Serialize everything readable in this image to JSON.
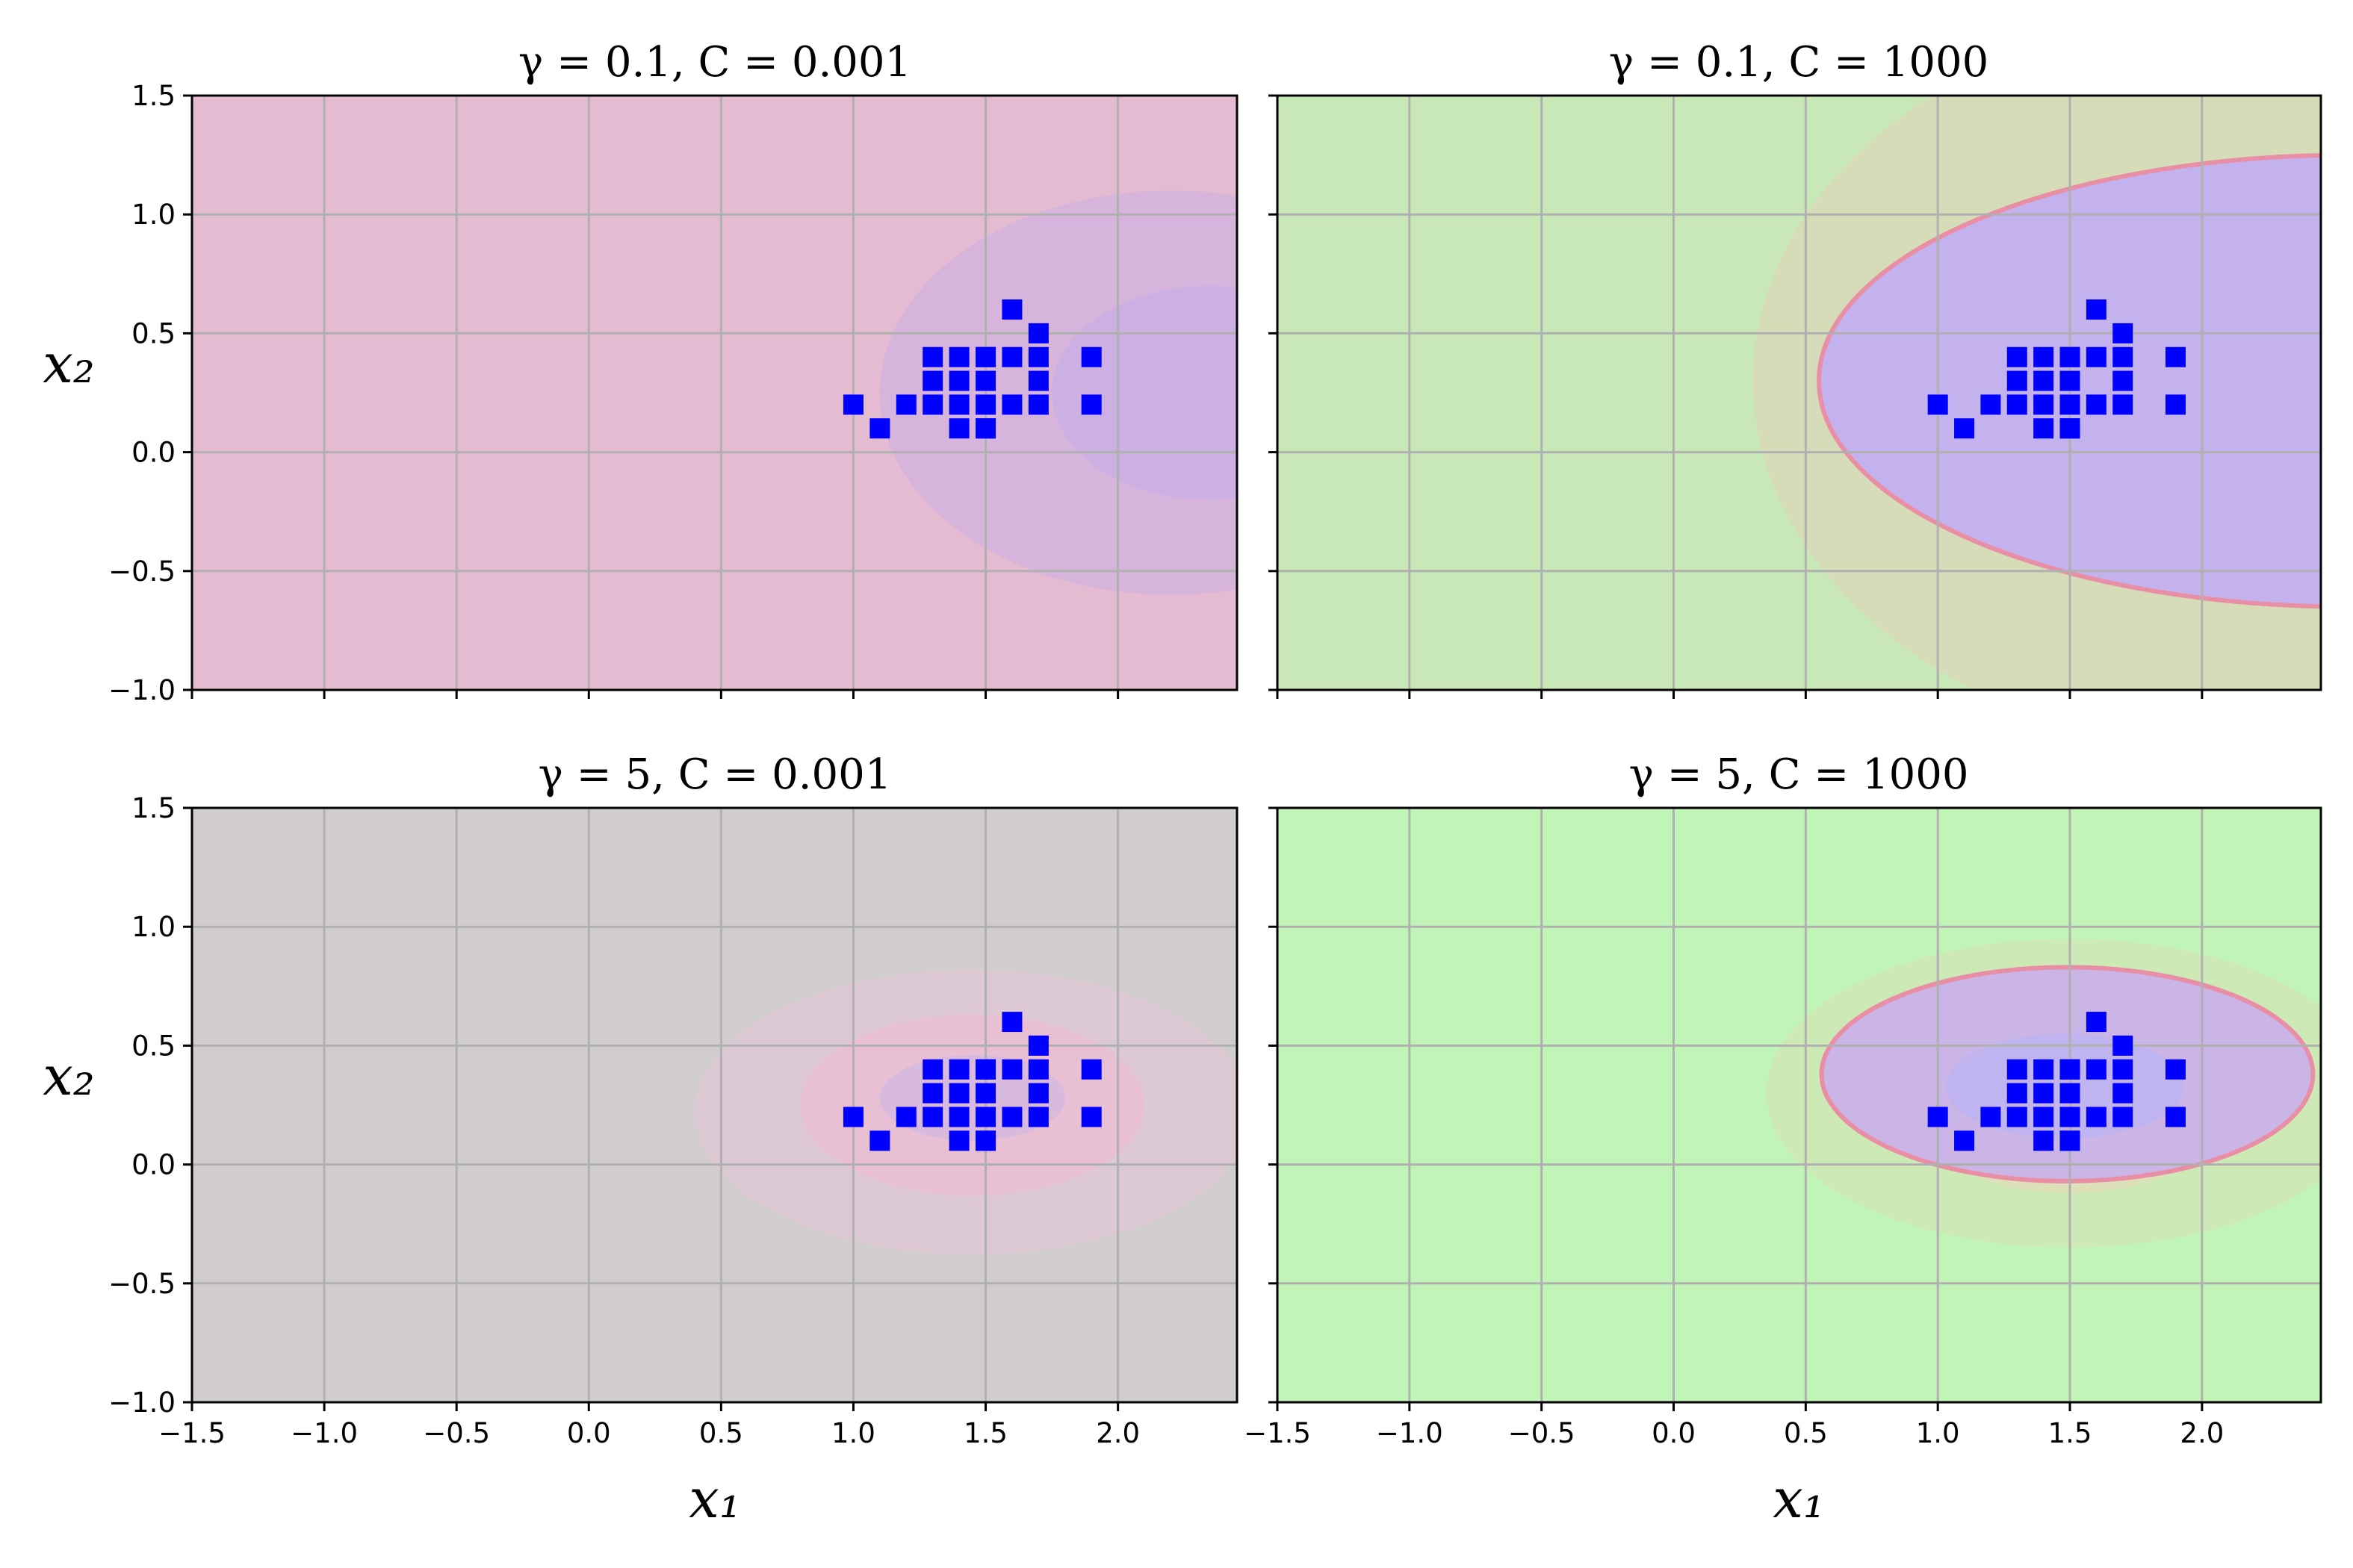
{
  "chart_data": [
    {
      "type": "contour",
      "title": "γ = 0.1, C = 0.001",
      "gamma": 0.1,
      "C": 0.001,
      "xlim": [
        -1.5,
        2.45
      ],
      "ylim": [
        -1.0,
        1.5
      ],
      "x_ticks": [
        -1.5,
        -1.0,
        -0.5,
        0.0,
        0.5,
        1.0,
        1.5,
        2.0
      ],
      "x_tick_labels": [],
      "y_ticks": [
        -1.0,
        -0.5,
        0.0,
        0.5,
        1.0,
        1.5
      ],
      "y_tick_labels": [
        "−1.0",
        "−0.5",
        "0.0",
        "0.5",
        "1.0",
        "1.5"
      ],
      "xlabel": "",
      "ylabel": "x₂",
      "grid": true,
      "background_color": "#e4bbd0",
      "regions": [
        {
          "color": "#d6b4dc",
          "center": [
            2.2,
            0.25
          ],
          "rx": 1.1,
          "ry": 0.85
        },
        {
          "color": "#ccb0e4",
          "center": [
            2.35,
            0.25
          ],
          "rx": 0.6,
          "ry": 0.45
        }
      ]
    },
    {
      "type": "contour",
      "title": "γ = 0.1, C = 1000",
      "gamma": 0.1,
      "C": 1000,
      "xlim": [
        -1.5,
        2.45
      ],
      "ylim": [
        -1.0,
        1.5
      ],
      "x_ticks": [
        -1.5,
        -1.0,
        -0.5,
        0.0,
        0.5,
        1.0,
        1.5,
        2.0
      ],
      "x_tick_labels": [],
      "y_ticks": [
        -1.0,
        -0.5,
        0.0,
        0.5,
        1.0,
        1.5
      ],
      "y_tick_labels": [],
      "xlabel": "",
      "ylabel": "",
      "grid": true,
      "background_color": "#c9e8b8",
      "regions": [
        {
          "color": "#d6dcb8",
          "center": [
            2.3,
            0.3
          ],
          "rx": 2.0,
          "ry": 1.6
        },
        {
          "color": "#c4b2ee",
          "center": [
            2.55,
            0.3
          ],
          "rx": 2.0,
          "ry": 0.95,
          "edge": "#e88fa6"
        }
      ]
    },
    {
      "type": "contour",
      "title": "γ = 5, C = 0.001",
      "gamma": 5,
      "C": 0.001,
      "xlim": [
        -1.5,
        2.45
      ],
      "ylim": [
        -1.0,
        1.5
      ],
      "x_ticks": [
        -1.5,
        -1.0,
        -0.5,
        0.0,
        0.5,
        1.0,
        1.5,
        2.0
      ],
      "x_tick_labels": [
        "−1.5",
        "−1.0",
        "−0.5",
        "0.0",
        "0.5",
        "1.0",
        "1.5",
        "2.0"
      ],
      "y_ticks": [
        -1.0,
        -0.5,
        0.0,
        0.5,
        1.0,
        1.5
      ],
      "y_tick_labels": [
        "−1.0",
        "−0.5",
        "0.0",
        "0.5",
        "1.0",
        "1.5"
      ],
      "xlabel": "x₁",
      "ylabel": "x₂",
      "grid": true,
      "background_color": "#d1cdcd",
      "regions": [
        {
          "color": "#dcc9d4",
          "center": [
            1.45,
            0.22
          ],
          "rx": 1.05,
          "ry": 0.6
        },
        {
          "color": "#e8bfd3",
          "center": [
            1.45,
            0.25
          ],
          "rx": 0.65,
          "ry": 0.38
        },
        {
          "color": "#d8badf",
          "center": [
            1.45,
            0.28
          ],
          "rx": 0.35,
          "ry": 0.18
        }
      ]
    },
    {
      "type": "contour",
      "title": "γ = 5, C = 1000",
      "gamma": 5,
      "C": 1000,
      "xlim": [
        -1.5,
        2.45
      ],
      "ylim": [
        -1.0,
        1.5
      ],
      "x_ticks": [
        -1.5,
        -1.0,
        -0.5,
        0.0,
        0.5,
        1.0,
        1.5,
        2.0
      ],
      "x_tick_labels": [
        "−1.5",
        "−1.0",
        "−0.5",
        "0.0",
        "0.5",
        "1.0",
        "1.5",
        "2.0"
      ],
      "y_ticks": [
        -1.0,
        -0.5,
        0.0,
        0.5,
        1.0,
        1.5
      ],
      "y_tick_labels": [],
      "xlabel": "x₁",
      "ylabel": "",
      "grid": true,
      "background_color": "#c1f5b7",
      "regions": [
        {
          "color": "#cdeab6",
          "center": [
            1.5,
            0.3
          ],
          "rx": 1.15,
          "ry": 0.65
        },
        {
          "color": "#dde0b8",
          "center": [
            1.5,
            0.3
          ],
          "rx": 0.65,
          "ry": 0.42
        },
        {
          "color": "#cbb4e6",
          "center": [
            1.49,
            0.38
          ],
          "rx": 0.93,
          "ry": 0.45,
          "edge": "#e88fa6"
        },
        {
          "color": "#bfb3f0",
          "center": [
            1.48,
            0.33
          ],
          "rx": 0.45,
          "ry": 0.22
        }
      ]
    }
  ],
  "points": {
    "marker": "square",
    "color": "#0000ff",
    "x": [
      1.0,
      1.1,
      1.2,
      1.3,
      1.3,
      1.3,
      1.4,
      1.4,
      1.4,
      1.4,
      1.5,
      1.5,
      1.5,
      1.5,
      1.5,
      1.5,
      1.6,
      1.6,
      1.6,
      1.7,
      1.7,
      1.7,
      1.7,
      1.9,
      1.9
    ],
    "y": [
      0.2,
      0.1,
      0.2,
      0.2,
      0.3,
      0.4,
      0.1,
      0.2,
      0.3,
      0.4,
      0.1,
      0.2,
      0.3,
      0.4,
      0.1,
      0.4,
      0.2,
      0.4,
      0.6,
      0.2,
      0.3,
      0.4,
      0.5,
      0.2,
      0.4
    ]
  },
  "colors": {
    "grid": "#b0b0b0",
    "axes": "#000000"
  }
}
